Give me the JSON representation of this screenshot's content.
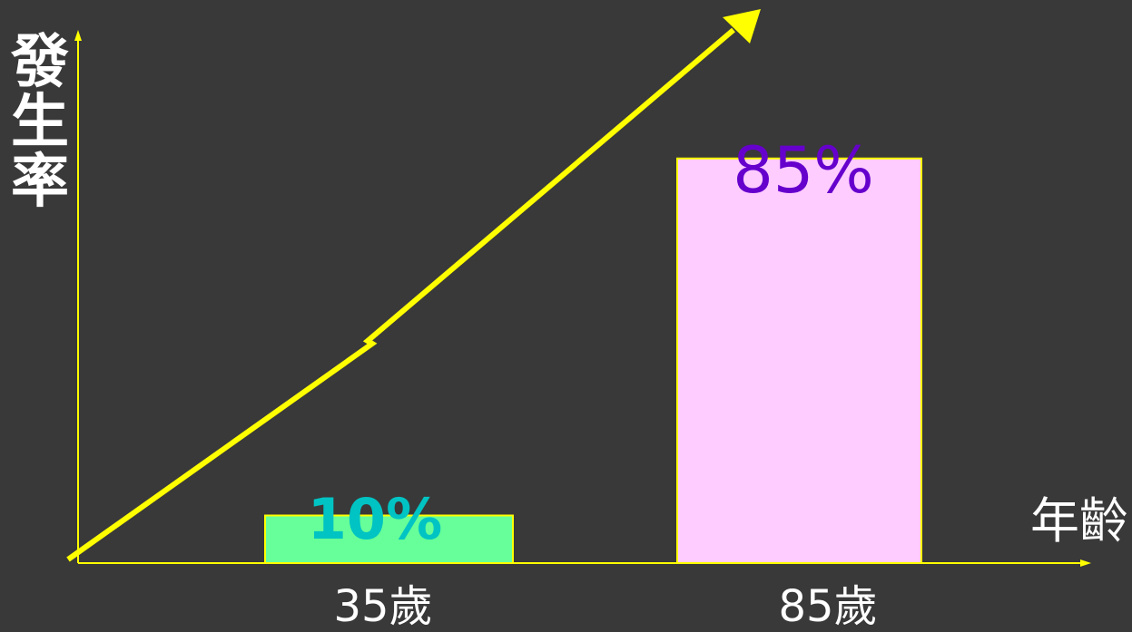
{
  "chart_data": {
    "type": "bar",
    "title": "",
    "xlabel": "年齡",
    "ylabel": [
      "發",
      "生",
      "率"
    ],
    "categories": [
      "35歲",
      "85歲"
    ],
    "values": [
      10,
      85
    ],
    "value_labels": [
      "10%",
      "85%"
    ],
    "ylim": [
      0,
      100
    ],
    "grid": false,
    "legend": "none",
    "trend_arrow": true
  },
  "colors": {
    "background": "#393939",
    "axis": "#ffff00",
    "arrow": "#ffff00",
    "bar_fills": [
      "#66ff99",
      "#ffccff"
    ],
    "bar_border": "#ffff00",
    "value_label_colors": [
      "#00c3c3",
      "#6600cc"
    ],
    "text": "#ffffff"
  }
}
